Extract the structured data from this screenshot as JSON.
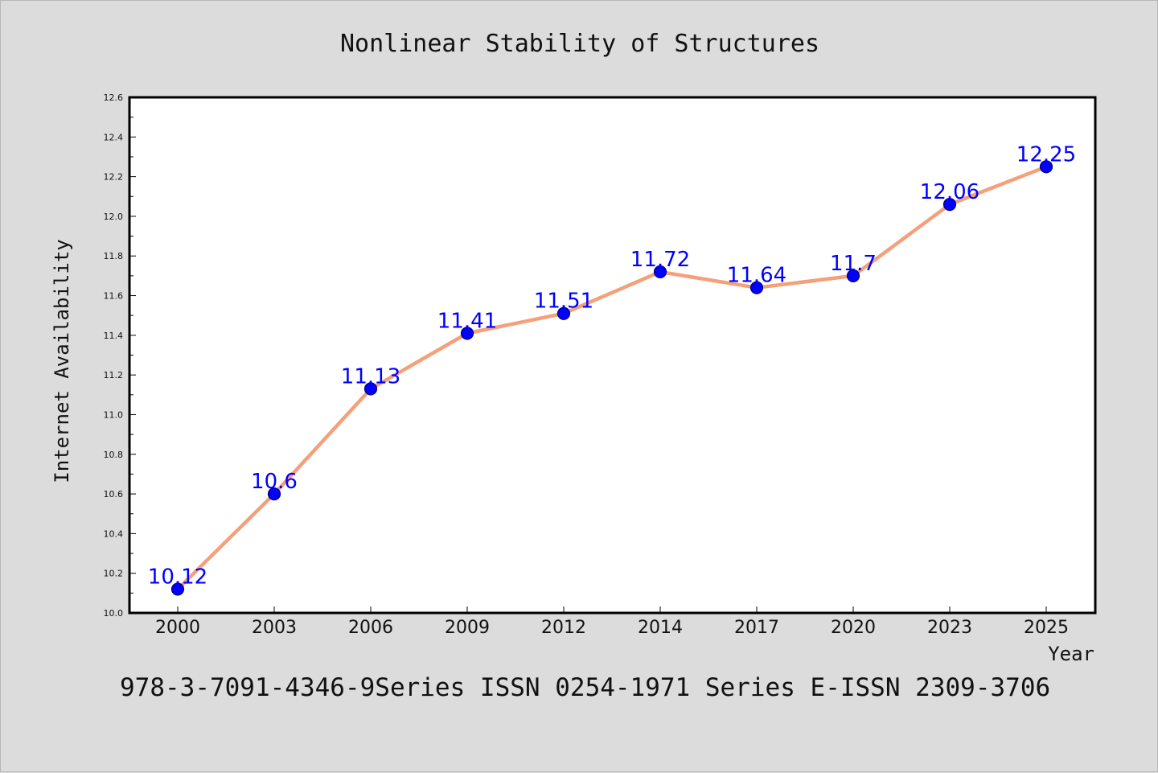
{
  "chart_data": {
    "type": "line",
    "title": "Nonlinear Stability of Structures",
    "xlabel": "Year",
    "ylabel": "Internet Availability",
    "categories": [
      "2000",
      "2003",
      "2006",
      "2009",
      "2012",
      "2014",
      "2017",
      "2020",
      "2023",
      "2025"
    ],
    "series": [
      {
        "values": [
          10.12,
          10.6,
          11.13,
          11.41,
          11.51,
          11.72,
          11.64,
          11.7,
          12.06,
          12.25
        ],
        "labels": [
          "10.12",
          "10.6",
          "11.13",
          "11.41",
          "11.51",
          "11.72",
          "11.64",
          "11.7",
          "12.06",
          "12.25"
        ]
      }
    ],
    "ylim": [
      10.0,
      12.6
    ],
    "yticks": [
      "10.0",
      "10.2",
      "10.4",
      "10.6",
      "10.8",
      "11.0",
      "11.2",
      "11.4",
      "11.6",
      "11.8",
      "12.0",
      "12.2",
      "12.4",
      "12.6"
    ],
    "grid": false,
    "data_labels": true,
    "colors": {
      "line": "#f4a07a",
      "marker_fill": "#0000ff",
      "marker_edge": "#000080",
      "label_text": "#0000ff",
      "background": "#dcdcdc",
      "plot_background": "#ffffff"
    }
  },
  "footer": "978-3-7091-4346-9Series ISSN 0254-1971 Series E-ISSN 2309-3706"
}
